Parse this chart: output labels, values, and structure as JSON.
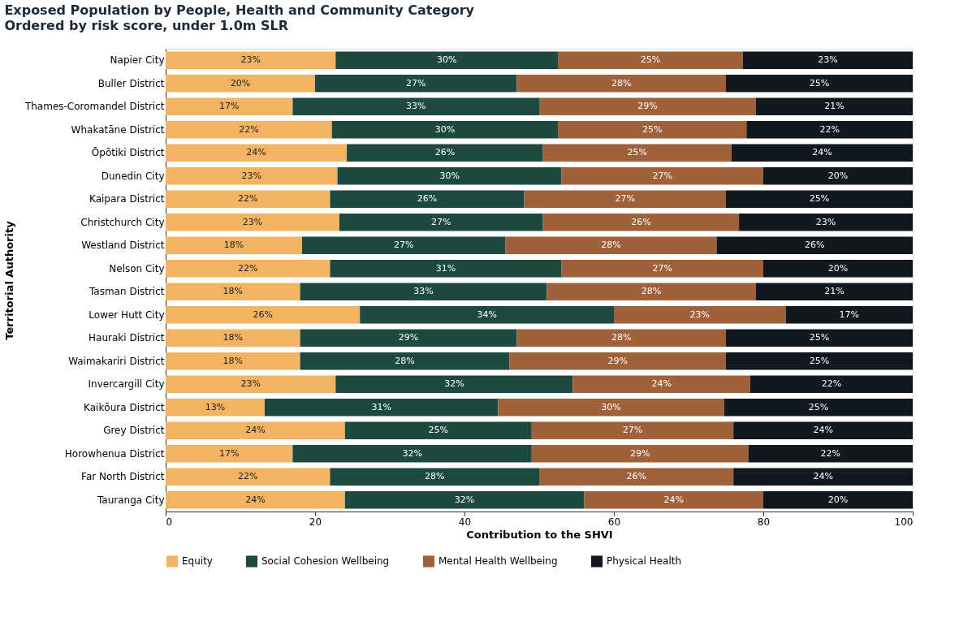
{
  "chart_data": {
    "type": "bar",
    "orientation": "horizontal",
    "stacked": true,
    "title": "Exposed Population by People, Health and Community Category",
    "subtitle": "Ordered by risk score, under 1.0m SLR",
    "xlabel": "Contribution to the SHVI",
    "ylabel": "Territorial Authority",
    "categories": [
      "Napier City",
      "Buller District",
      "Thames-Coromandel District",
      "Whakatāne District",
      "Ōpōtiki District",
      "Dunedin City",
      "Kaipara District",
      "Christchurch City",
      "Westland District",
      "Nelson City",
      "Tasman District",
      "Lower Hutt City",
      "Hauraki District",
      "Waimakariri District",
      "Invercargill City",
      "Kaikōura District",
      "Grey District",
      "Horowhenua District",
      "Far North District",
      "Tauranga City"
    ],
    "xlim": [
      0,
      100
    ],
    "xticks": [
      0,
      20,
      40,
      60,
      80,
      100
    ],
    "grid": false,
    "legend": "bottom",
    "series": [
      {
        "name": "Equity",
        "color": "#f2b462",
        "values": [
          22.75,
          20,
          17,
          22.25,
          24.25,
          23,
          22,
          23.25,
          18.25,
          22,
          18,
          26,
          18,
          18,
          22.75,
          13.25,
          24,
          17,
          22,
          24
        ],
        "value_labels": [
          "23%",
          "20%",
          "17%",
          "22%",
          "24%",
          "23%",
          "22%",
          "23%",
          "18%",
          "22%",
          "18%",
          "26%",
          "18%",
          "18%",
          "23%",
          "13%",
          "24%",
          "17%",
          "22%",
          "24%"
        ]
      },
      {
        "name": "Social Cohesion Wellbeing",
        "color": "#1d4a40",
        "values": [
          29.75,
          27,
          33,
          30.25,
          26.25,
          30,
          26,
          27.25,
          27.25,
          31,
          33,
          34,
          29,
          28,
          31.75,
          31.25,
          25,
          32,
          28,
          32
        ],
        "value_labels": [
          "30%",
          "27%",
          "33%",
          "30%",
          "26%",
          "30%",
          "26%",
          "27%",
          "27%",
          "31%",
          "33%",
          "34%",
          "29%",
          "28%",
          "32%",
          "31%",
          "25%",
          "32%",
          "28%",
          "32%"
        ]
      },
      {
        "name": "Mental Health Wellbeing",
        "color": "#a0613a",
        "values": [
          24.75,
          28,
          29,
          25.25,
          25.25,
          27,
          27,
          26.25,
          28.25,
          27,
          28,
          23,
          28,
          29,
          23.75,
          30.25,
          27,
          29,
          26,
          24
        ],
        "value_labels": [
          "25%",
          "28%",
          "29%",
          "25%",
          "25%",
          "27%",
          "27%",
          "26%",
          "28%",
          "27%",
          "28%",
          "23%",
          "28%",
          "29%",
          "24%",
          "30%",
          "27%",
          "29%",
          "26%",
          "24%"
        ]
      },
      {
        "name": "Physical Health",
        "color": "#111820",
        "values": [
          22.75,
          25,
          21,
          22.25,
          24.25,
          20,
          25,
          23.25,
          26.25,
          20,
          21,
          17,
          25,
          25,
          21.75,
          25.25,
          24,
          22,
          24,
          20
        ],
        "value_labels": [
          "23%",
          "25%",
          "21%",
          "22%",
          "24%",
          "20%",
          "25%",
          "23%",
          "26%",
          "20%",
          "21%",
          "17%",
          "25%",
          "25%",
          "22%",
          "25%",
          "24%",
          "22%",
          "24%",
          "20%"
        ]
      }
    ]
  }
}
